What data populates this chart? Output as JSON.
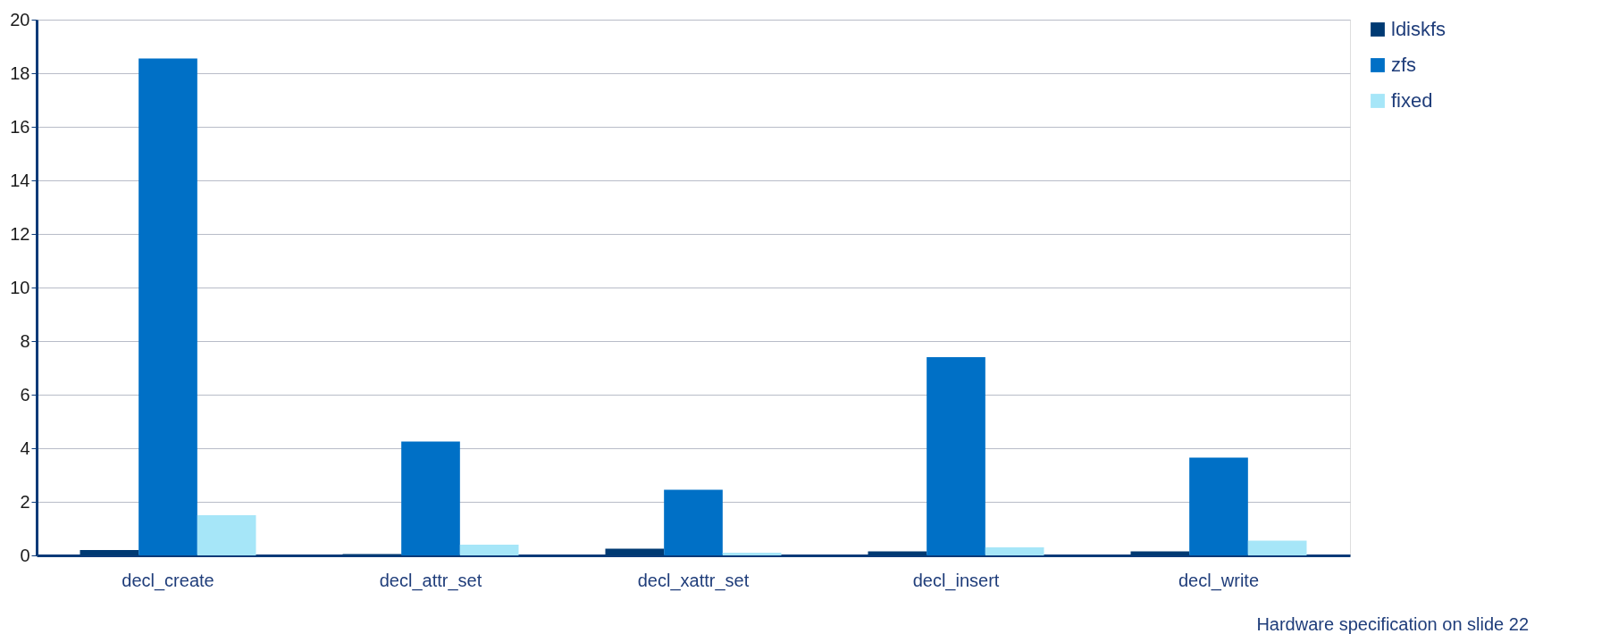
{
  "chart_data": {
    "type": "bar",
    "categories": [
      "decl_create",
      "decl_attr_set",
      "decl_xattr_set",
      "decl_insert",
      "decl_write"
    ],
    "series": [
      {
        "name": "ldiskfs",
        "color": "#003a73",
        "values": [
          0.2,
          0.05,
          0.25,
          0.15,
          0.15
        ]
      },
      {
        "name": "zfs",
        "color": "#0070c6",
        "values": [
          18.55,
          4.25,
          2.45,
          7.4,
          3.65
        ]
      },
      {
        "name": "fixed",
        "color": "#a6e6f8",
        "values": [
          1.5,
          0.4,
          0.1,
          0.3,
          0.55
        ]
      }
    ],
    "ylim": [
      0,
      20
    ],
    "yticks": [
      0,
      2,
      4,
      6,
      8,
      10,
      12,
      14,
      16,
      18,
      20
    ],
    "grid": "y",
    "legend": "right",
    "annotations": [
      "Hardware specification on slide 22"
    ]
  }
}
